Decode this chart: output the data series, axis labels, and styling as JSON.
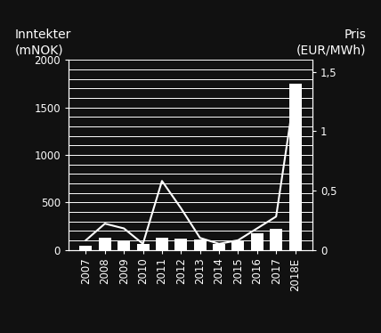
{
  "categories": [
    "2007",
    "2008",
    "2009",
    "2010",
    "2011",
    "2012",
    "2013",
    "2014",
    "2015",
    "2016",
    "2017",
    "2018E"
  ],
  "bar_values": [
    40,
    130,
    90,
    65,
    130,
    120,
    110,
    60,
    100,
    170,
    220,
    1750
  ],
  "line_values": [
    0.08,
    0.22,
    0.18,
    0.05,
    0.58,
    0.35,
    0.1,
    0.05,
    0.08,
    0.18,
    0.28,
    1.35
  ],
  "bar_color": "#ffffff",
  "line_color": "#ffffff",
  "background_color": "#111111",
  "axes_color": "#ffffff",
  "grid_color": "#ffffff",
  "left_ylim": [
    0,
    2000
  ],
  "right_ylim": [
    0,
    1.6
  ],
  "left_yticks": [
    0,
    500,
    1000,
    1500,
    2000
  ],
  "right_yticks": [
    0,
    0.5,
    1.0,
    1.5
  ],
  "right_yticklabels": [
    "0",
    "0,5",
    "1",
    "1,5"
  ],
  "left_yticklabels": [
    "0",
    "500",
    "1000",
    "1500",
    "2000"
  ],
  "title_left": "Inntekter\n(mNOK)",
  "title_right": "Pris\n(EUR/MWh)",
  "figsize": [
    4.28,
    3.74
  ],
  "dpi": 100,
  "grid_linewidth": 0.7,
  "bar_width": 0.65,
  "line_linewidth": 1.5,
  "tick_fontsize": 8.5,
  "label_fontsize": 10
}
